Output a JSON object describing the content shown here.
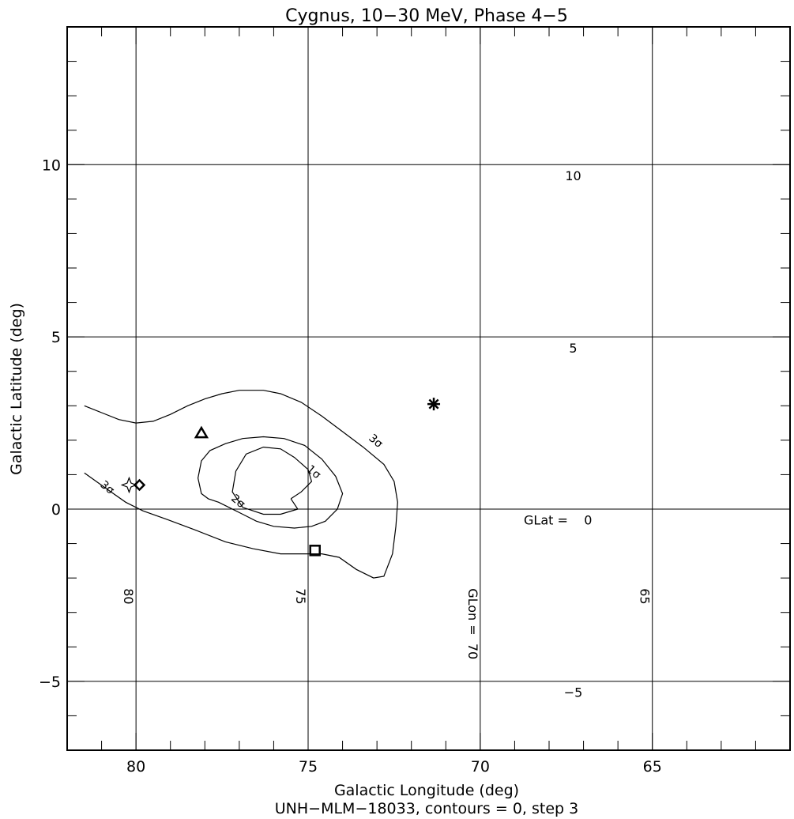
{
  "chart_data": {
    "type": "contour",
    "title": "Cygnus, 10−30 MeV, Phase 4−5",
    "xlabel": "Galactic Longitude (deg)",
    "ylabel": "Galactic Latitude (deg)",
    "caption": "UNH−MLM−18033, contours = 0, step 3",
    "xlim": [
      82,
      61
    ],
    "ylim": [
      -7,
      14
    ],
    "x_ticks": [
      80,
      75,
      70,
      65
    ],
    "x_tick_labels": [
      "80",
      "75",
      "70",
      "65"
    ],
    "y_ticks": [
      -5,
      0,
      5,
      10
    ],
    "y_tick_labels": [
      "−5",
      "0",
      "5",
      "10"
    ],
    "grid_lon": [
      {
        "value": 80,
        "label": "80"
      },
      {
        "value": 75,
        "label": "75"
      },
      {
        "value": 70,
        "label": "GLon =  70"
      },
      {
        "value": 65,
        "label": "65"
      }
    ],
    "grid_lat": [
      {
        "value": 10,
        "label": "10"
      },
      {
        "value": 5,
        "label": "5"
      },
      {
        "value": 0,
        "label": "GLat =    0"
      },
      {
        "value": -5,
        "label": "−5"
      }
    ],
    "contours": [
      {
        "label": "1σ",
        "label_at": [
          74.9,
          1.0
        ],
        "points": [
          [
            75.5,
            0.3
          ],
          [
            75.3,
            0.0
          ],
          [
            75.8,
            -0.15
          ],
          [
            76.3,
            -0.15
          ],
          [
            76.9,
            0.05
          ],
          [
            77.2,
            0.5
          ],
          [
            77.1,
            1.1
          ],
          [
            76.8,
            1.6
          ],
          [
            76.3,
            1.8
          ],
          [
            75.8,
            1.75
          ],
          [
            75.4,
            1.5
          ],
          [
            75.0,
            1.15
          ],
          [
            74.9,
            0.8
          ],
          [
            75.2,
            0.5
          ],
          [
            75.5,
            0.3
          ]
        ]
      },
      {
        "label": "2σ",
        "label_at": [
          77.1,
          0.15
        ],
        "points": [
          [
            77.3,
            0.05
          ],
          [
            76.9,
            -0.15
          ],
          [
            76.5,
            -0.35
          ],
          [
            76.0,
            -0.5
          ],
          [
            75.4,
            -0.55
          ],
          [
            74.9,
            -0.5
          ],
          [
            74.5,
            -0.35
          ],
          [
            74.15,
            0.0
          ],
          [
            74.0,
            0.45
          ],
          [
            74.2,
            0.95
          ],
          [
            74.6,
            1.45
          ],
          [
            75.1,
            1.85
          ],
          [
            75.7,
            2.05
          ],
          [
            76.3,
            2.1
          ],
          [
            76.9,
            2.05
          ],
          [
            77.4,
            1.9
          ],
          [
            77.85,
            1.7
          ],
          [
            78.1,
            1.4
          ],
          [
            78.2,
            0.9
          ],
          [
            78.1,
            0.45
          ],
          [
            77.9,
            0.3
          ],
          [
            77.6,
            0.2
          ],
          [
            77.3,
            0.05
          ]
        ]
      },
      {
        "label": "3σ",
        "label_at": [
          73.1,
          1.9
        ],
        "points": [
          [
            81.5,
            3.0
          ],
          [
            81.0,
            2.8
          ],
          [
            80.5,
            2.6
          ],
          [
            80.0,
            2.5
          ],
          [
            79.5,
            2.55
          ],
          [
            79.0,
            2.75
          ],
          [
            78.5,
            3.0
          ],
          [
            78.0,
            3.2
          ],
          [
            77.5,
            3.35
          ],
          [
            77.0,
            3.45
          ],
          [
            76.3,
            3.45
          ],
          [
            75.8,
            3.35
          ],
          [
            75.2,
            3.1
          ],
          [
            74.6,
            2.7
          ],
          [
            74.0,
            2.25
          ],
          [
            73.4,
            1.8
          ],
          [
            72.8,
            1.3
          ],
          [
            72.5,
            0.8
          ],
          [
            72.4,
            0.2
          ],
          [
            72.45,
            -0.5
          ],
          [
            72.55,
            -1.3
          ],
          [
            72.8,
            -1.95
          ],
          [
            73.1,
            -2.0
          ],
          [
            73.6,
            -1.75
          ],
          [
            74.1,
            -1.4
          ],
          [
            74.6,
            -1.3
          ],
          [
            75.2,
            -1.3
          ],
          [
            75.8,
            -1.3
          ],
          [
            76.6,
            -1.15
          ],
          [
            77.4,
            -0.95
          ],
          [
            78.3,
            -0.6
          ],
          [
            79.1,
            -0.3
          ],
          [
            79.8,
            -0.05
          ],
          [
            80.3,
            0.2
          ],
          [
            80.8,
            0.55
          ],
          [
            81.5,
            1.05
          ]
        ]
      }
    ],
    "contour_extra_labels": [
      {
        "text": "3σ",
        "at": [
          80.9,
          0.55
        ]
      }
    ],
    "sources": [
      {
        "name": "star-marker",
        "glon": 80.2,
        "glat": 0.7
      },
      {
        "name": "diamond-marker",
        "glon": 79.9,
        "glat": 0.7
      },
      {
        "name": "triangle-marker",
        "glon": 78.1,
        "glat": 2.2
      },
      {
        "name": "square-marker",
        "glon": 74.8,
        "glat": -1.2
      },
      {
        "name": "asterisk-marker",
        "glon": 71.35,
        "glat": 3.05
      }
    ]
  }
}
